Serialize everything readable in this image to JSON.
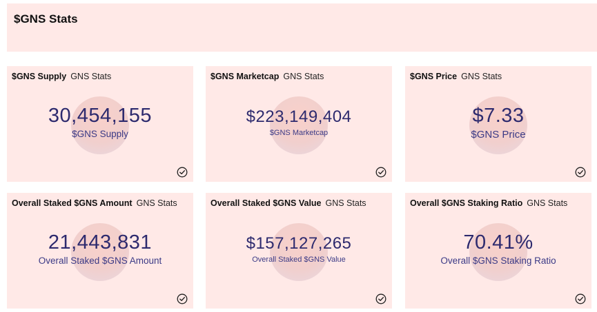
{
  "header": {
    "title": "$GNS Stats"
  },
  "cards": [
    {
      "title": "$GNS Supply",
      "subtitle": "GNS Stats",
      "value": "30,454,155",
      "label": "$GNS Supply"
    },
    {
      "title": "$GNS Marketcap",
      "subtitle": "GNS Stats",
      "value": "$223,149,404",
      "label": "$GNS Marketcap"
    },
    {
      "title": "$GNS Price",
      "subtitle": "GNS Stats",
      "value": "$7.33",
      "label": "$GNS Price"
    },
    {
      "title": "Overall Staked $GNS Amount",
      "subtitle": "GNS Stats",
      "value": "21,443,831",
      "label": "Overall Staked $GNS Amount"
    },
    {
      "title": "Overall Staked $GNS Value",
      "subtitle": "GNS Stats",
      "value": "$157,127,265",
      "label": "Overall Staked $GNS Value"
    },
    {
      "title": "Overall $GNS Staking Ratio",
      "subtitle": "GNS Stats",
      "value": "70.41%",
      "label": "Overall $GNS Staking Ratio"
    }
  ],
  "icons": {
    "status": "check-circle-icon"
  },
  "colors": {
    "card_background": "#ffe9e7",
    "value_text": "#2d2a6e",
    "label_text": "#3b3a86"
  }
}
